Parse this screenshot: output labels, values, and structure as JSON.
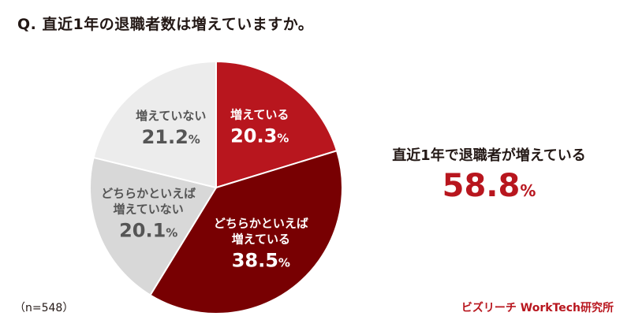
{
  "question": "Q. 直近1年の退職者数は増えていますか。",
  "summary": {
    "text": "直近1年で退職者が増えている",
    "value": "58.8",
    "unit": "%"
  },
  "sample_note": "（n=548）",
  "credit": "ビズリーチ WorkTech研究所",
  "chart_data": {
    "type": "pie",
    "title": "",
    "unit": "%",
    "slices": [
      {
        "label": [
          "増えている"
        ],
        "value": 20.3,
        "color": "#b8161e",
        "text_color": "#ffffff"
      },
      {
        "label": [
          "どちらかといえば",
          "増えている"
        ],
        "value": 38.5,
        "color": "#780002",
        "text_color": "#ffffff"
      },
      {
        "label": [
          "どちらかといえば",
          "増えていない"
        ],
        "value": 20.1,
        "color": "#d8d8d8",
        "text_color": "#555555"
      },
      {
        "label": [
          "増えていない"
        ],
        "value": 21.2,
        "color": "#ececec",
        "text_color": "#555555"
      }
    ]
  }
}
